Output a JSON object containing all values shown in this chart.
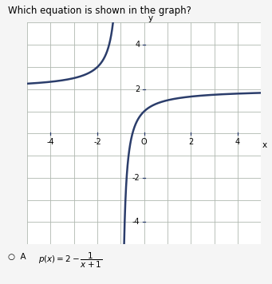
{
  "title": "Which equation is shown in the graph?",
  "xlim": [
    -5,
    5
  ],
  "ylim": [
    -5,
    5
  ],
  "xticks": [
    -4,
    -2,
    0,
    2,
    4
  ],
  "yticks": [
    -4,
    -2,
    2,
    4
  ],
  "xtick_labels": [
    "-4",
    "-2",
    "O",
    "2",
    "4"
  ],
  "ytick_labels": [
    "-4",
    "-2",
    "2",
    "4"
  ],
  "vertical_asymptote": -1,
  "horizontal_asymptote": 2,
  "curve_color": "#2b3d6b",
  "axis_color": "#2b3d6b",
  "grid_color": "#b0b8b0",
  "background_color": "#f5f5f5",
  "plot_bg_color": "#ffffff",
  "xlabel": "x",
  "ylabel": "y",
  "figsize": [
    3.41,
    3.56
  ],
  "dpi": 100,
  "answer_text": "p(x) = 2 - \\frac{1}{x+1}"
}
